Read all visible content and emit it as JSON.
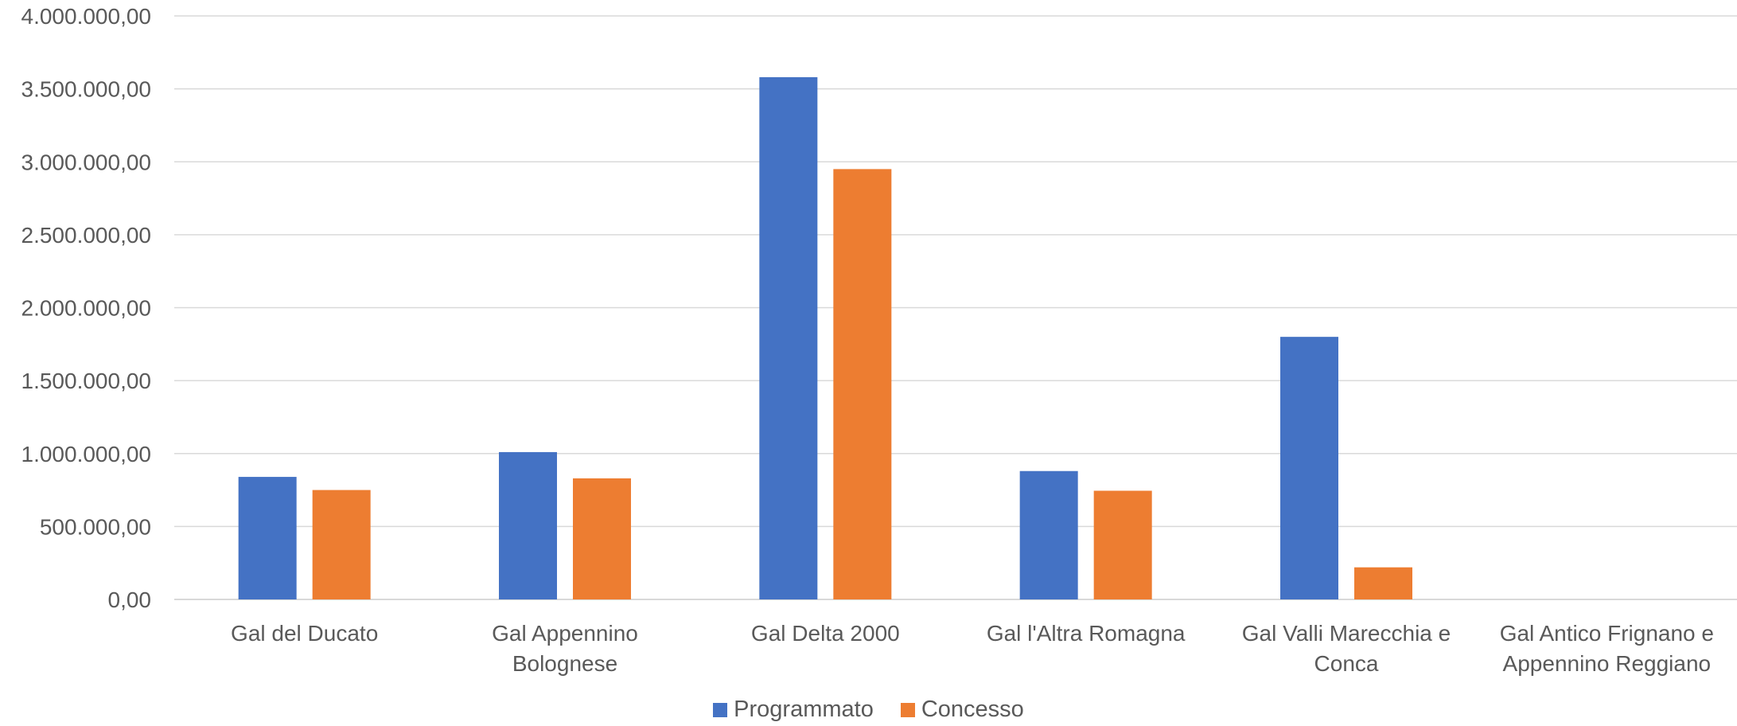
{
  "chart_data": {
    "type": "bar",
    "categories": [
      [
        "Gal del Ducato"
      ],
      [
        "Gal Appennino",
        "Bolognese"
      ],
      [
        "Gal Delta 2000"
      ],
      [
        "Gal l'Altra Romagna"
      ],
      [
        "Gal Valli Marecchia e",
        "Conca"
      ],
      [
        "Gal Antico Frignano e",
        "Appennino Reggiano"
      ]
    ],
    "series": [
      {
        "name": "Programmato",
        "color": "#4472C4",
        "values": [
          840000,
          1010000,
          3580000,
          880000,
          1800000,
          0
        ]
      },
      {
        "name": "Concesso",
        "color": "#ED7D31",
        "values": [
          750000,
          830000,
          2950000,
          745000,
          220000,
          0
        ]
      }
    ],
    "ylim": [
      0,
      4000000
    ],
    "yticks": [
      "0,00",
      "500.000,00",
      "1.000.000,00",
      "1.500.000,00",
      "2.000.000,00",
      "2.500.000,00",
      "3.000.000,00",
      "3.500.000,00",
      "4.000.000,00"
    ],
    "ytick_values": [
      0,
      500000,
      1000000,
      1500000,
      2000000,
      2500000,
      3000000,
      3500000,
      4000000
    ],
    "grid": true,
    "legend_position": "bottom"
  }
}
